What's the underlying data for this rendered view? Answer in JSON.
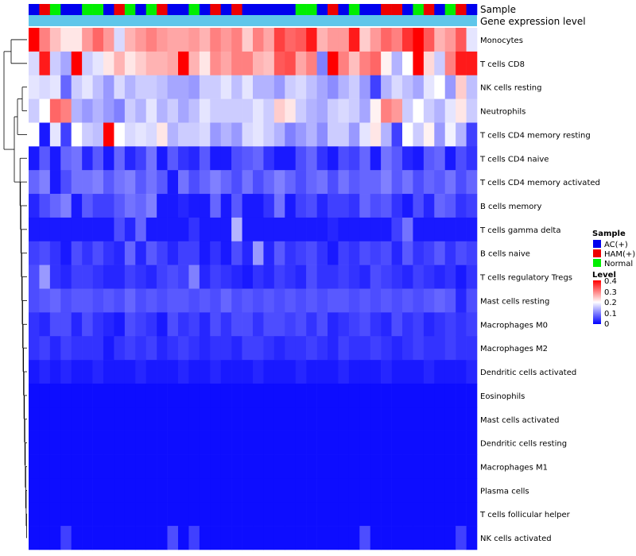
{
  "chart_data": {
    "type": "heatmap",
    "title": "",
    "annotation_tracks": [
      {
        "label": "Sample",
        "type": "categorical"
      },
      {
        "label": "Gene expression level",
        "type": "continuous"
      }
    ],
    "rows": [
      "Monocytes",
      "T cells CD8",
      "NK cells resting",
      "Neutrophils",
      "T cells CD4 memory resting",
      "T cells CD4 naive",
      "T cells CD4 memory activated",
      "B cells memory",
      "T cells gamma delta",
      "B cells naive",
      "T cells regulatory  Tregs",
      "Mast cells resting",
      "Macrophages M0",
      "Macrophages M2",
      "Dendritic cells activated",
      "Eosinophils",
      "Mast cells activated",
      "Dendritic cells resting",
      "Macrophages M1",
      "Plasma cells",
      "T cells follicular helper",
      "NK cells activated"
    ],
    "sample_groups": [
      "AC(+)",
      "HAM(+)",
      "Normal",
      "AC(+)",
      "AC(+)",
      "Normal",
      "Normal",
      "AC(+)",
      "HAM(+)",
      "Normal",
      "AC(+)",
      "Normal",
      "HAM(+)",
      "AC(+)",
      "AC(+)",
      "Normal",
      "AC(+)",
      "HAM(+)",
      "AC(+)",
      "HAM(+)",
      "AC(+)",
      "AC(+)",
      "AC(+)",
      "AC(+)",
      "AC(+)",
      "Normal",
      "Normal",
      "AC(+)",
      "HAM(+)",
      "AC(+)",
      "Normal",
      "AC(+)",
      "AC(+)",
      "HAM(+)",
      "HAM(+)",
      "AC(+)",
      "Normal",
      "HAM(+)",
      "AC(+)",
      "Normal",
      "HAM(+)",
      "AC(+)"
    ],
    "legend": {
      "sample": {
        "title": "Sample",
        "entries": [
          "AC(+)",
          "HAM(+)",
          "Normal"
        ],
        "colors": [
          "#0000ee",
          "#ee0000",
          "#00ee00"
        ]
      },
      "level": {
        "title": "Level",
        "min": 0,
        "max": 0.4,
        "ticks": [
          0.4,
          0.3,
          0.2,
          0.1,
          0
        ]
      },
      "placement": "right"
    },
    "color_scale": {
      "low": "#0000ff",
      "mid": "#ffffff",
      "high": "#ff0000",
      "domain": [
        0,
        0.4
      ]
    },
    "values": [
      [
        0.4,
        0.3,
        0.25,
        0.22,
        0.22,
        0.28,
        0.32,
        0.28,
        0.17,
        0.26,
        0.28,
        0.3,
        0.28,
        0.27,
        0.27,
        0.28,
        0.26,
        0.3,
        0.28,
        0.3,
        0.24,
        0.3,
        0.27,
        0.35,
        0.32,
        0.33,
        0.38,
        0.26,
        0.28,
        0.28,
        0.38,
        0.24,
        0.28,
        0.32,
        0.3,
        0.36,
        0.4,
        0.33,
        0.26,
        0.28,
        0.33,
        0.18
      ],
      [
        0.17,
        0.38,
        0.16,
        0.13,
        0.4,
        0.16,
        0.18,
        0.22,
        0.26,
        0.22,
        0.24,
        0.26,
        0.26,
        0.27,
        0.4,
        0.26,
        0.22,
        0.29,
        0.27,
        0.3,
        0.3,
        0.26,
        0.25,
        0.33,
        0.34,
        0.27,
        0.3,
        0.1,
        0.4,
        0.3,
        0.25,
        0.3,
        0.32,
        0.21,
        0.14,
        0.2,
        0.4,
        0.23,
        0.16,
        0.3,
        0.38,
        0.38
      ],
      [
        0.18,
        0.17,
        0.18,
        0.08,
        0.16,
        0.18,
        0.15,
        0.12,
        0.17,
        0.14,
        0.16,
        0.16,
        0.15,
        0.13,
        0.13,
        0.12,
        0.16,
        0.16,
        0.18,
        0.15,
        0.18,
        0.14,
        0.14,
        0.12,
        0.16,
        0.17,
        0.15,
        0.13,
        0.11,
        0.14,
        0.16,
        0.12,
        0.05,
        0.14,
        0.17,
        0.15,
        0.13,
        0.18,
        0.2,
        0.12,
        0.24,
        0.15
      ],
      [
        0.16,
        0.2,
        0.32,
        0.3,
        0.14,
        0.12,
        0.14,
        0.12,
        0.1,
        0.16,
        0.14,
        0.18,
        0.14,
        0.16,
        0.13,
        0.15,
        0.18,
        0.16,
        0.16,
        0.16,
        0.16,
        0.18,
        0.16,
        0.24,
        0.22,
        0.16,
        0.14,
        0.13,
        0.16,
        0.17,
        0.16,
        0.13,
        0.21,
        0.3,
        0.28,
        0.16,
        0.2,
        0.16,
        0.14,
        0.18,
        0.22,
        0.16
      ],
      [
        0.2,
        0.02,
        0.18,
        0.05,
        0.2,
        0.16,
        0.15,
        0.4,
        0.2,
        0.17,
        0.18,
        0.17,
        0.22,
        0.14,
        0.16,
        0.16,
        0.17,
        0.12,
        0.14,
        0.12,
        0.17,
        0.18,
        0.16,
        0.14,
        0.1,
        0.12,
        0.14,
        0.11,
        0.16,
        0.16,
        0.12,
        0.18,
        0.22,
        0.14,
        0.05,
        0.2,
        0.16,
        0.21,
        0.12,
        0.19,
        0.14,
        0.05
      ],
      [
        0.02,
        0.07,
        0.02,
        0.08,
        0.09,
        0.03,
        0.07,
        0.02,
        0.08,
        0.03,
        0.05,
        0.09,
        0.02,
        0.07,
        0.04,
        0.03,
        0.07,
        0.02,
        0.02,
        0.06,
        0.07,
        0.08,
        0.04,
        0.02,
        0.02,
        0.06,
        0.08,
        0.04,
        0.02,
        0.06,
        0.05,
        0.08,
        0.02,
        0.09,
        0.07,
        0.03,
        0.02,
        0.07,
        0.08,
        0.02,
        0.06,
        0.04
      ],
      [
        0.08,
        0.1,
        0.02,
        0.06,
        0.09,
        0.09,
        0.1,
        0.07,
        0.09,
        0.1,
        0.07,
        0.09,
        0.07,
        0.02,
        0.09,
        0.06,
        0.08,
        0.1,
        0.08,
        0.06,
        0.09,
        0.06,
        0.08,
        0.1,
        0.08,
        0.06,
        0.08,
        0.09,
        0.06,
        0.09,
        0.07,
        0.08,
        0.08,
        0.1,
        0.07,
        0.09,
        0.06,
        0.08,
        0.07,
        0.09,
        0.06,
        0.08
      ],
      [
        0.03,
        0.06,
        0.08,
        0.1,
        0.02,
        0.07,
        0.05,
        0.05,
        0.07,
        0.09,
        0.08,
        0.1,
        0.02,
        0.02,
        0.03,
        0.02,
        0.02,
        0.08,
        0.02,
        0.07,
        0.02,
        0.02,
        0.04,
        0.09,
        0.02,
        0.05,
        0.06,
        0.03,
        0.05,
        0.05,
        0.04,
        0.08,
        0.06,
        0.07,
        0.04,
        0.02,
        0.06,
        0.03,
        0.08,
        0.07,
        0.04,
        0.05
      ],
      [
        0.02,
        0.02,
        0.02,
        0.02,
        0.02,
        0.02,
        0.02,
        0.02,
        0.06,
        0.03,
        0.08,
        0.02,
        0.02,
        0.02,
        0.02,
        0.04,
        0.02,
        0.02,
        0.02,
        0.14,
        0.02,
        0.02,
        0.02,
        0.02,
        0.02,
        0.02,
        0.02,
        0.02,
        0.03,
        0.02,
        0.02,
        0.02,
        0.02,
        0.02,
        0.05,
        0.09,
        0.02,
        0.02,
        0.02,
        0.02,
        0.02,
        0.02
      ],
      [
        0.05,
        0.06,
        0.04,
        0.02,
        0.06,
        0.04,
        0.06,
        0.04,
        0.03,
        0.08,
        0.03,
        0.07,
        0.05,
        0.03,
        0.05,
        0.05,
        0.02,
        0.04,
        0.02,
        0.06,
        0.03,
        0.12,
        0.03,
        0.07,
        0.04,
        0.05,
        0.06,
        0.04,
        0.02,
        0.05,
        0.04,
        0.06,
        0.05,
        0.06,
        0.03,
        0.07,
        0.04,
        0.05,
        0.07,
        0.04,
        0.06,
        0.05
      ],
      [
        0.06,
        0.12,
        0.04,
        0.03,
        0.05,
        0.05,
        0.04,
        0.03,
        0.03,
        0.05,
        0.04,
        0.03,
        0.05,
        0.06,
        0.05,
        0.1,
        0.03,
        0.05,
        0.04,
        0.03,
        0.02,
        0.04,
        0.03,
        0.05,
        0.04,
        0.03,
        0.06,
        0.04,
        0.04,
        0.05,
        0.04,
        0.03,
        0.06,
        0.05,
        0.04,
        0.03,
        0.05,
        0.04,
        0.03,
        0.04,
        0.02,
        0.04
      ],
      [
        0.06,
        0.07,
        0.08,
        0.06,
        0.07,
        0.07,
        0.06,
        0.07,
        0.06,
        0.08,
        0.06,
        0.07,
        0.06,
        0.07,
        0.07,
        0.06,
        0.07,
        0.06,
        0.08,
        0.06,
        0.07,
        0.06,
        0.07,
        0.06,
        0.07,
        0.06,
        0.07,
        0.06,
        0.07,
        0.07,
        0.06,
        0.07,
        0.06,
        0.07,
        0.06,
        0.07,
        0.06,
        0.07,
        0.08,
        0.07,
        0.03,
        0.06
      ],
      [
        0.04,
        0.03,
        0.06,
        0.06,
        0.03,
        0.06,
        0.04,
        0.03,
        0.02,
        0.06,
        0.05,
        0.04,
        0.02,
        0.06,
        0.04,
        0.05,
        0.03,
        0.06,
        0.04,
        0.06,
        0.06,
        0.04,
        0.06,
        0.06,
        0.05,
        0.06,
        0.04,
        0.06,
        0.03,
        0.04,
        0.05,
        0.06,
        0.04,
        0.03,
        0.06,
        0.04,
        0.05,
        0.03,
        0.04,
        0.05,
        0.04,
        0.05
      ],
      [
        0.04,
        0.05,
        0.03,
        0.05,
        0.04,
        0.04,
        0.04,
        0.02,
        0.04,
        0.05,
        0.04,
        0.05,
        0.03,
        0.04,
        0.05,
        0.04,
        0.03,
        0.04,
        0.04,
        0.03,
        0.05,
        0.05,
        0.04,
        0.03,
        0.04,
        0.04,
        0.05,
        0.04,
        0.03,
        0.05,
        0.04,
        0.04,
        0.05,
        0.04,
        0.03,
        0.04,
        0.05,
        0.04,
        0.04,
        0.05,
        0.04,
        0.04
      ],
      [
        0.02,
        0.03,
        0.02,
        0.03,
        0.02,
        0.02,
        0.03,
        0.02,
        0.02,
        0.02,
        0.03,
        0.02,
        0.02,
        0.02,
        0.03,
        0.02,
        0.02,
        0.03,
        0.02,
        0.02,
        0.02,
        0.03,
        0.02,
        0.02,
        0.02,
        0.03,
        0.02,
        0.02,
        0.02,
        0.03,
        0.02,
        0.02,
        0.02,
        0.03,
        0.02,
        0.02,
        0.02,
        0.03,
        0.02,
        0.02,
        0.02,
        0.03
      ],
      [
        0.01,
        0.01,
        0.01,
        0.01,
        0.01,
        0.01,
        0.01,
        0.01,
        0.01,
        0.01,
        0.01,
        0.01,
        0.01,
        0.01,
        0.01,
        0.01,
        0.01,
        0.01,
        0.01,
        0.01,
        0.01,
        0.01,
        0.01,
        0.01,
        0.01,
        0.01,
        0.01,
        0.01,
        0.01,
        0.01,
        0.01,
        0.01,
        0.01,
        0.01,
        0.01,
        0.01,
        0.01,
        0.01,
        0.01,
        0.01,
        0.01,
        0.01
      ],
      [
        0.01,
        0.01,
        0.01,
        0.01,
        0.01,
        0.01,
        0.01,
        0.01,
        0.01,
        0.01,
        0.01,
        0.01,
        0.01,
        0.01,
        0.01,
        0.01,
        0.01,
        0.01,
        0.01,
        0.01,
        0.01,
        0.01,
        0.01,
        0.01,
        0.01,
        0.01,
        0.01,
        0.01,
        0.01,
        0.01,
        0.01,
        0.01,
        0.01,
        0.01,
        0.01,
        0.01,
        0.01,
        0.01,
        0.01,
        0.01,
        0.01,
        0.01
      ],
      [
        0.01,
        0.01,
        0.01,
        0.01,
        0.01,
        0.01,
        0.01,
        0.01,
        0.01,
        0.01,
        0.01,
        0.01,
        0.01,
        0.01,
        0.01,
        0.01,
        0.01,
        0.01,
        0.01,
        0.01,
        0.01,
        0.01,
        0.01,
        0.01,
        0.01,
        0.01,
        0.01,
        0.01,
        0.01,
        0.01,
        0.01,
        0.01,
        0.01,
        0.01,
        0.01,
        0.01,
        0.01,
        0.01,
        0.01,
        0.01,
        0.01,
        0.01
      ],
      [
        0.01,
        0.01,
        0.01,
        0.01,
        0.01,
        0.01,
        0.01,
        0.01,
        0.01,
        0.01,
        0.01,
        0.01,
        0.01,
        0.01,
        0.01,
        0.01,
        0.01,
        0.01,
        0.01,
        0.01,
        0.01,
        0.01,
        0.01,
        0.01,
        0.01,
        0.01,
        0.01,
        0.01,
        0.01,
        0.01,
        0.01,
        0.01,
        0.01,
        0.01,
        0.01,
        0.01,
        0.01,
        0.01,
        0.01,
        0.01,
        0.01,
        0.01
      ],
      [
        0.01,
        0.01,
        0.01,
        0.01,
        0.01,
        0.01,
        0.01,
        0.01,
        0.01,
        0.01,
        0.01,
        0.01,
        0.01,
        0.01,
        0.01,
        0.01,
        0.01,
        0.01,
        0.01,
        0.01,
        0.01,
        0.01,
        0.01,
        0.01,
        0.01,
        0.01,
        0.01,
        0.01,
        0.01,
        0.01,
        0.01,
        0.01,
        0.01,
        0.01,
        0.01,
        0.01,
        0.01,
        0.01,
        0.01,
        0.01,
        0.01,
        0.01
      ],
      [
        0.01,
        0.01,
        0.01,
        0.01,
        0.01,
        0.01,
        0.01,
        0.01,
        0.01,
        0.01,
        0.01,
        0.01,
        0.01,
        0.01,
        0.01,
        0.01,
        0.01,
        0.01,
        0.01,
        0.01,
        0.01,
        0.01,
        0.01,
        0.01,
        0.01,
        0.01,
        0.01,
        0.01,
        0.01,
        0.01,
        0.01,
        0.01,
        0.01,
        0.01,
        0.01,
        0.01,
        0.01,
        0.01,
        0.01,
        0.01,
        0.01,
        0.01
      ],
      [
        0.01,
        0.01,
        0.01,
        0.05,
        0.01,
        0.01,
        0.01,
        0.01,
        0.01,
        0.01,
        0.01,
        0.01,
        0.01,
        0.06,
        0.01,
        0.05,
        0.01,
        0.01,
        0.01,
        0.01,
        0.01,
        0.01,
        0.01,
        0.01,
        0.01,
        0.01,
        0.01,
        0.01,
        0.01,
        0.01,
        0.01,
        0.06,
        0.01,
        0.01,
        0.01,
        0.01,
        0.01,
        0.01,
        0.01,
        0.01,
        0.05,
        0.01
      ]
    ]
  }
}
